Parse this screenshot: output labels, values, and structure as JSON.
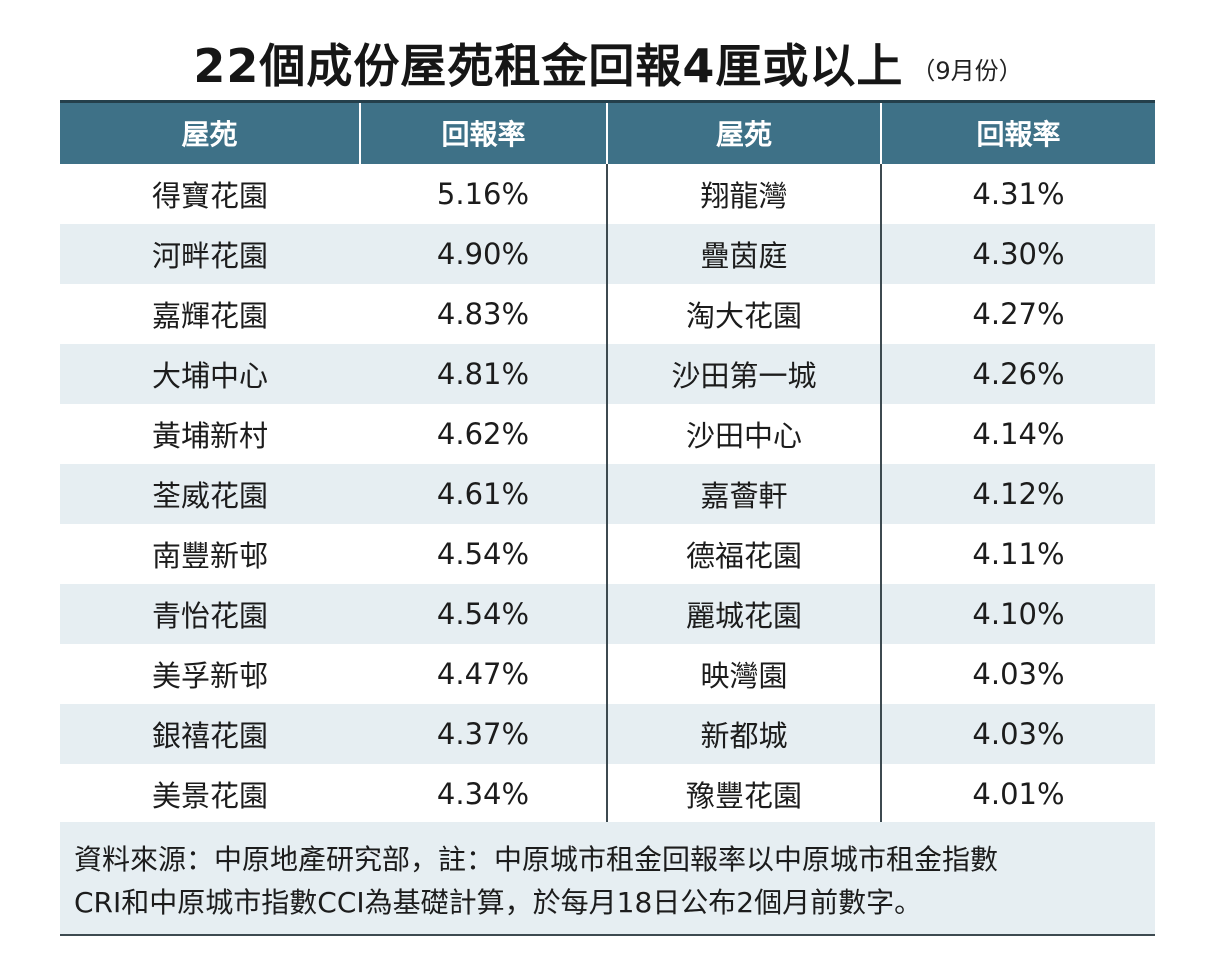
{
  "title": "22個成份屋苑租金回報4厘或以上",
  "subtitle": "（9月份）",
  "table": {
    "headers": [
      "屋苑",
      "回報率",
      "屋苑",
      "回報率"
    ],
    "rows": [
      {
        "estate_a": "得寶花園",
        "rate_a": "5.16%",
        "estate_b": "翔龍灣",
        "rate_b": "4.31%"
      },
      {
        "estate_a": "河畔花園",
        "rate_a": "4.90%",
        "estate_b": "疊茵庭",
        "rate_b": "4.30%"
      },
      {
        "estate_a": "嘉輝花園",
        "rate_a": "4.83%",
        "estate_b": "淘大花園",
        "rate_b": "4.27%"
      },
      {
        "estate_a": "大埔中心",
        "rate_a": "4.81%",
        "estate_b": "沙田第一城",
        "rate_b": "4.26%"
      },
      {
        "estate_a": "黃埔新村",
        "rate_a": "4.62%",
        "estate_b": "沙田中心",
        "rate_b": "4.14%"
      },
      {
        "estate_a": "荃威花園",
        "rate_a": "4.61%",
        "estate_b": "嘉薈軒",
        "rate_b": "4.12%"
      },
      {
        "estate_a": "南豐新邨",
        "rate_a": "4.54%",
        "estate_b": "德福花園",
        "rate_b": "4.11%"
      },
      {
        "estate_a": "青怡花園",
        "rate_a": "4.54%",
        "estate_b": "麗城花園",
        "rate_b": "4.10%"
      },
      {
        "estate_a": "美孚新邨",
        "rate_a": "4.47%",
        "estate_b": "映灣園",
        "rate_b": "4.03%"
      },
      {
        "estate_a": "銀禧花園",
        "rate_a": "4.37%",
        "estate_b": "新都城",
        "rate_b": "4.03%"
      },
      {
        "estate_a": "美景花園",
        "rate_a": "4.34%",
        "estate_b": "豫豐花園",
        "rate_b": "4.01%"
      }
    ]
  },
  "note": {
    "line1": "資料來源：中原地產研究部，註：中原城市租金回報率以中原城市租金指數",
    "line2": "CRI和中原城市指數CCI為基礎計算，於每月18日公布2個月前數字。"
  },
  "colors": {
    "header_bg": "#3e7187",
    "stripe_bg": "#e6eef2"
  }
}
